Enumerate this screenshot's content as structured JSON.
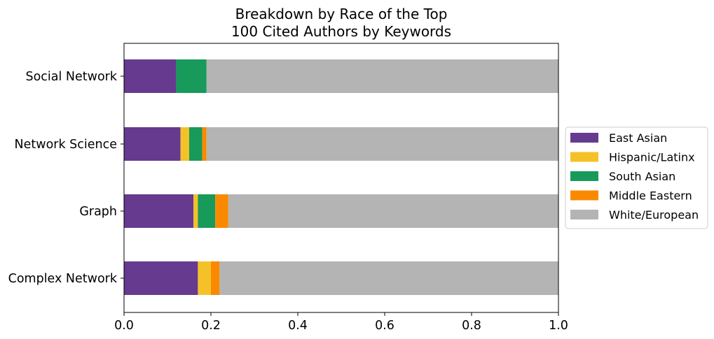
{
  "chart_data": {
    "type": "bar",
    "orientation": "horizontal",
    "stacked": true,
    "title": "Breakdown by Race of the Top\n100 Cited Authors by Keywords",
    "title_lines": [
      "Breakdown by Race of the Top",
      "100 Cited Authors by Keywords"
    ],
    "xlabel": "",
    "ylabel": "",
    "xlim": [
      0,
      1
    ],
    "xticks": [
      "0.0",
      "0.2",
      "0.4",
      "0.6",
      "0.8",
      "1.0"
    ],
    "grid": false,
    "legend_position": "right",
    "categories": [
      "Social Network",
      "Network Science",
      "Graph",
      "Complex Network"
    ],
    "series": [
      {
        "name": "East Asian",
        "color": "#653a8f",
        "values": [
          0.12,
          0.13,
          0.16,
          0.17
        ]
      },
      {
        "name": "Hispanic/Latinx",
        "color": "#f4c228",
        "values": [
          0.0,
          0.02,
          0.01,
          0.03
        ]
      },
      {
        "name": "South Asian",
        "color": "#189a5a",
        "values": [
          0.07,
          0.03,
          0.04,
          0.0
        ]
      },
      {
        "name": "Middle Eastern",
        "color": "#f98a00",
        "values": [
          0.0,
          0.01,
          0.03,
          0.02
        ]
      },
      {
        "name": "White/European",
        "color": "#b4b4b4",
        "values": [
          0.81,
          0.81,
          0.76,
          0.78
        ]
      }
    ]
  }
}
